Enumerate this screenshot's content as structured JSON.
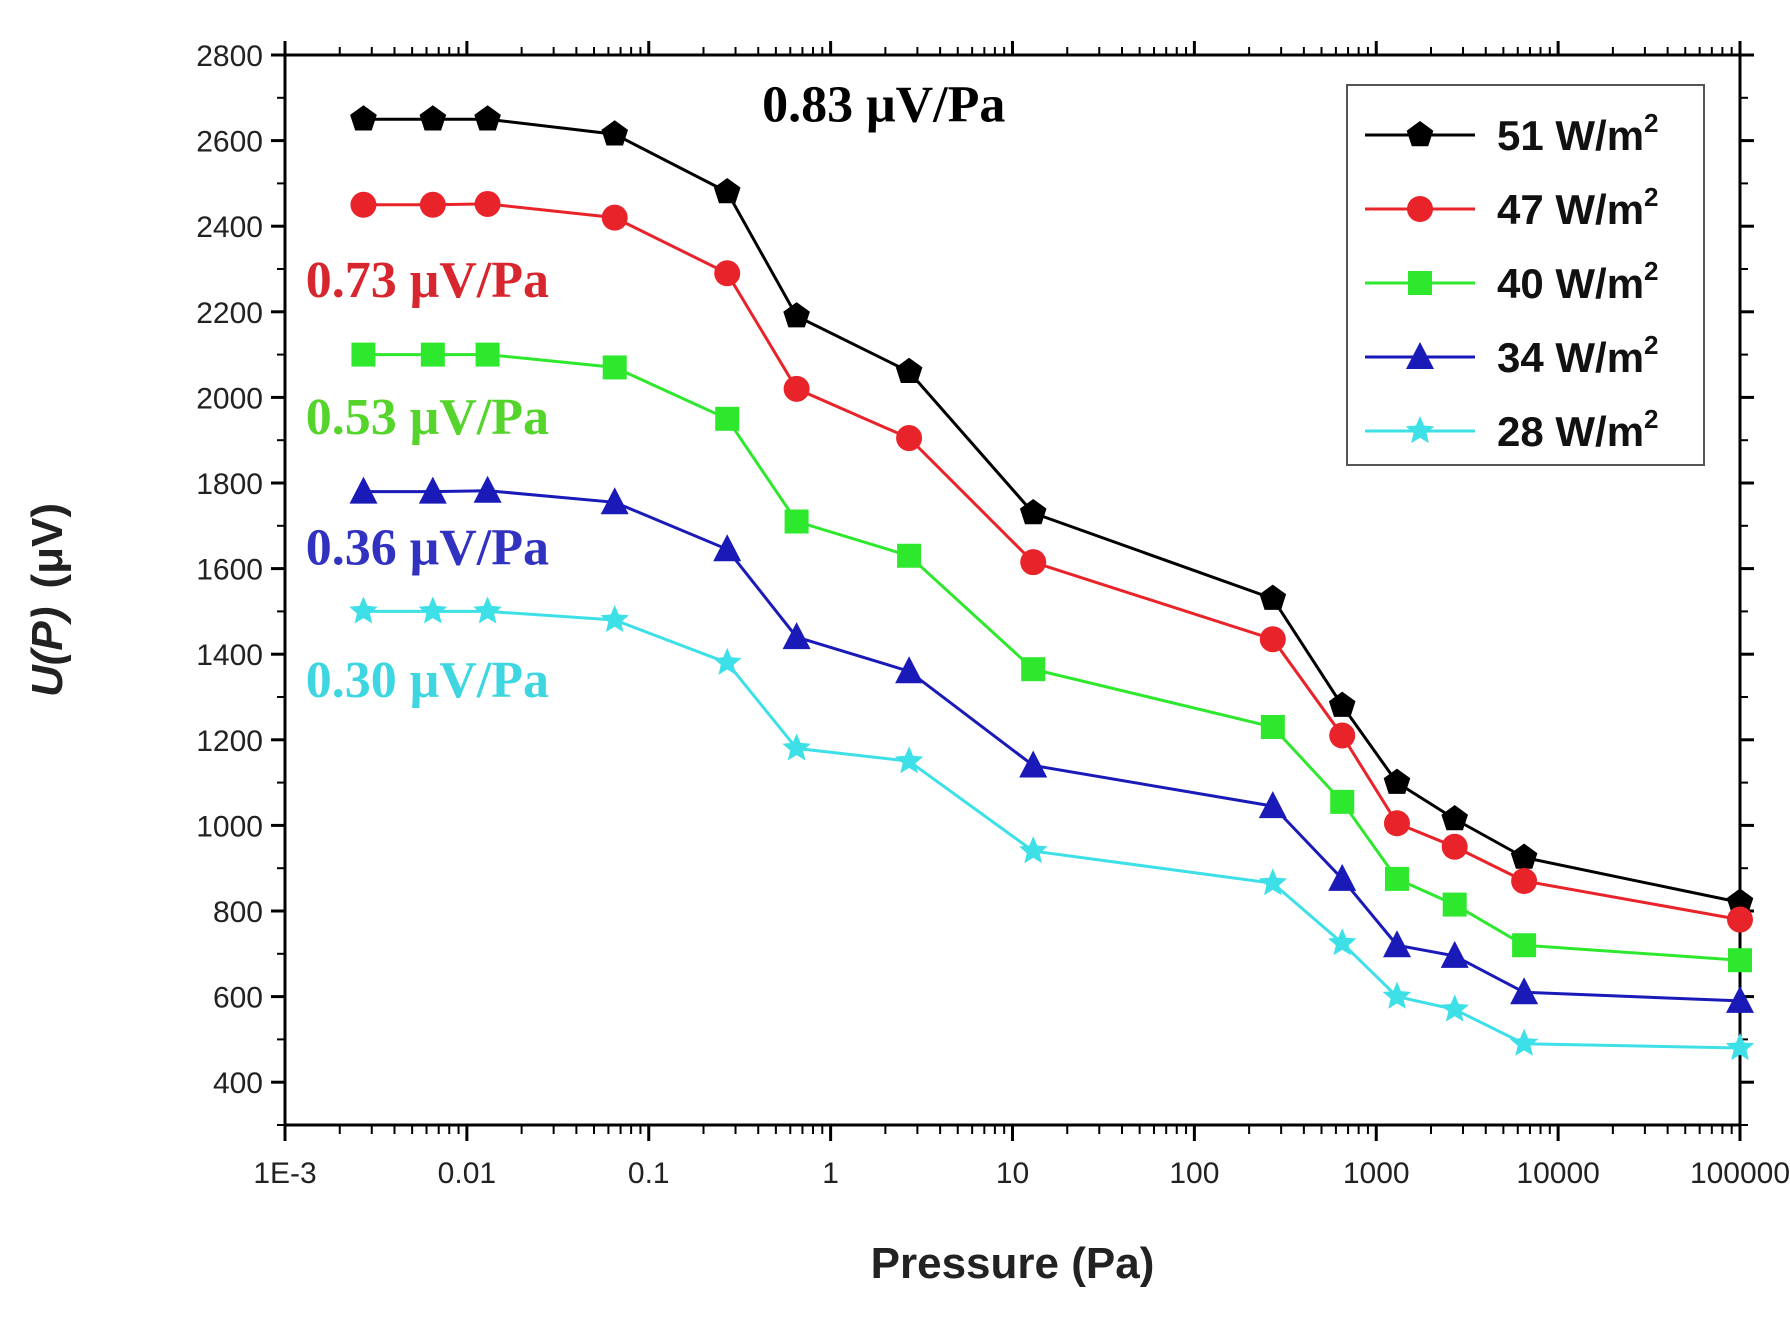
{
  "chart_data": {
    "type": "line",
    "title": "",
    "xlabel": "Pressure (Pa)",
    "ylabel": "U(P) (μV)",
    "ylabel_parts": {
      "symbol": "U(P)",
      "unit": "(μV)"
    },
    "x_scale": "log",
    "xlim": [
      0.001,
      100000
    ],
    "ylim": [
      300,
      2800
    ],
    "x_ticks": [
      0.001,
      0.01,
      0.1,
      1,
      10,
      100,
      1000,
      10000,
      100000
    ],
    "x_tick_labels": [
      "1E-3",
      "0.01",
      "0.1",
      "1",
      "10",
      "100",
      "1000",
      "10000",
      "100000"
    ],
    "y_ticks": [
      400,
      600,
      800,
      1000,
      1200,
      1400,
      1600,
      1800,
      2000,
      2200,
      2400,
      2600,
      2800
    ],
    "y_tick_labels": [
      "400",
      "600",
      "800",
      "1000",
      "1200",
      "1400",
      "1600",
      "1800",
      "2000",
      "2200",
      "2400",
      "2600",
      "2800"
    ],
    "x": [
      0.0027,
      0.0065,
      0.013,
      0.065,
      0.27,
      0.65,
      2.7,
      13,
      270,
      650,
      1300,
      2700,
      6500,
      100000
    ],
    "series": [
      {
        "name": "51 W/m",
        "power": "2",
        "color": "#000000",
        "marker": "pentagon",
        "values": [
          2650,
          2650,
          2650,
          2615,
          2480,
          2190,
          2060,
          1730,
          1530,
          1280,
          1100,
          1015,
          925,
          820
        ]
      },
      {
        "name": "47 W/m",
        "power": "2",
        "color": "#e8242a",
        "marker": "circle",
        "values": [
          2450,
          2450,
          2452,
          2420,
          2290,
          2020,
          1905,
          1615,
          1435,
          1210,
          1005,
          950,
          870,
          780
        ]
      },
      {
        "name": "40 W/m",
        "power": "2",
        "color": "#2ee82e",
        "marker": "square",
        "values": [
          2100,
          2100,
          2100,
          2070,
          1950,
          1710,
          1630,
          1365,
          1230,
          1055,
          875,
          815,
          720,
          685
        ]
      },
      {
        "name": "34 W/m",
        "power": "2",
        "color": "#1a1ab8",
        "marker": "triangle",
        "values": [
          1780,
          1780,
          1782,
          1755,
          1645,
          1440,
          1360,
          1140,
          1045,
          875,
          720,
          695,
          610,
          590
        ]
      },
      {
        "name": "28 W/m",
        "power": "2",
        "color": "#3ee0e8",
        "marker": "star",
        "values": [
          1500,
          1500,
          1500,
          1480,
          1380,
          1180,
          1150,
          940,
          865,
          725,
          600,
          570,
          490,
          480
        ]
      }
    ],
    "annotations": [
      {
        "text": "0.83 μV/Pa",
        "color": "#000000",
        "x": 0.42,
        "y": 2645
      },
      {
        "text": "0.73 μV/Pa",
        "color": "#d7262e",
        "x": 0.0013,
        "y": 2235
      },
      {
        "text": "0.53 μV/Pa",
        "color": "#55d42b",
        "x": 0.0013,
        "y": 1915
      },
      {
        "text": "0.36 μV/Pa",
        "color": "#3232c0",
        "x": 0.0013,
        "y": 1610
      },
      {
        "text": "0.30 μV/Pa",
        "color": "#3ed6e0",
        "x": 0.0013,
        "y": 1300
      }
    ],
    "legend": {
      "position": "top-right"
    },
    "grid": false
  }
}
